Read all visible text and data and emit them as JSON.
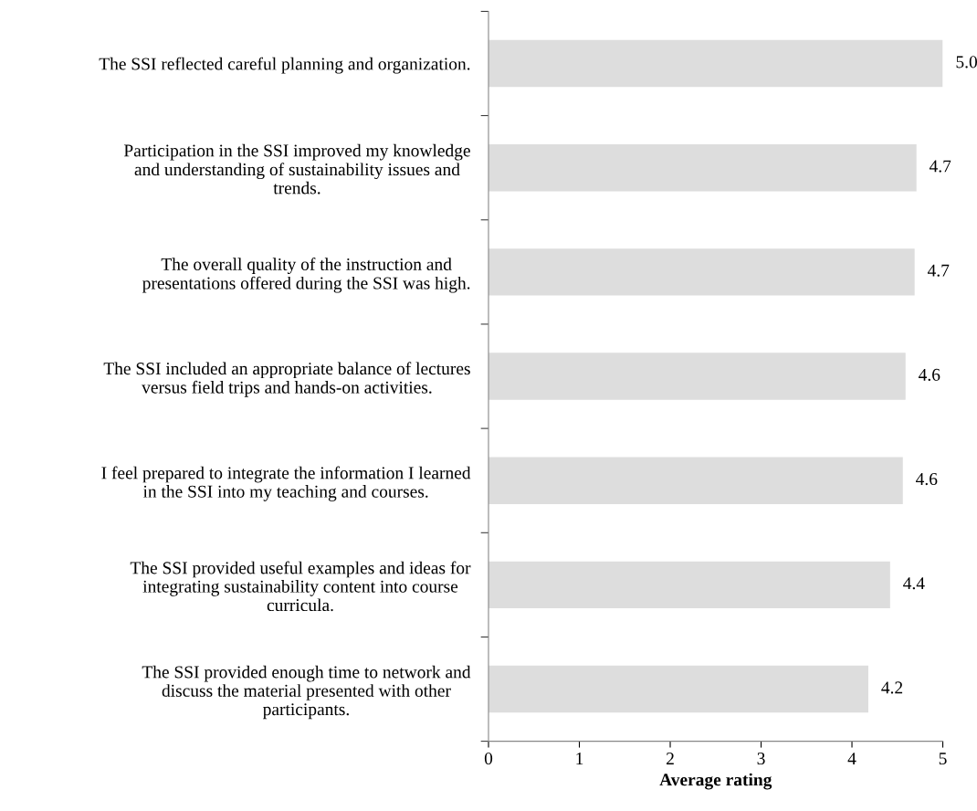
{
  "chart_data": {
    "type": "bar",
    "orientation": "horizontal",
    "xlabel": "Average rating",
    "categories": [
      "The SSI reflected careful planning and organization.",
      "Participation in the SSI improved my knowledge\nand understanding of sustainability issues and\ntrends.",
      "The overall quality of the instruction and\npresentations offered during the SSI was high.",
      "The SSI included an appropriate balance of lectures\nversus field trips and hands-on activities.",
      "I feel prepared to integrate the information I learned\nin the SSI into my teaching and courses.",
      "The SSI provided useful examples and ideas for\nintegrating sustainability content into course\ncurricula.",
      "The SSI provided enough time to network and\ndiscuss the material presented with other\nparticipants."
    ],
    "values": [
      5.0,
      4.71,
      4.69,
      4.59,
      4.56,
      4.42,
      4.18
    ],
    "value_labels": [
      "5.0",
      "4.7",
      "4.7",
      "4.6",
      "4.6",
      "4.4",
      "4.2"
    ],
    "color": "#dddddd",
    "xlim": [
      0,
      5
    ],
    "xticks": [
      0,
      1,
      2,
      3,
      4,
      5
    ],
    "grid": false,
    "legend": false
  }
}
